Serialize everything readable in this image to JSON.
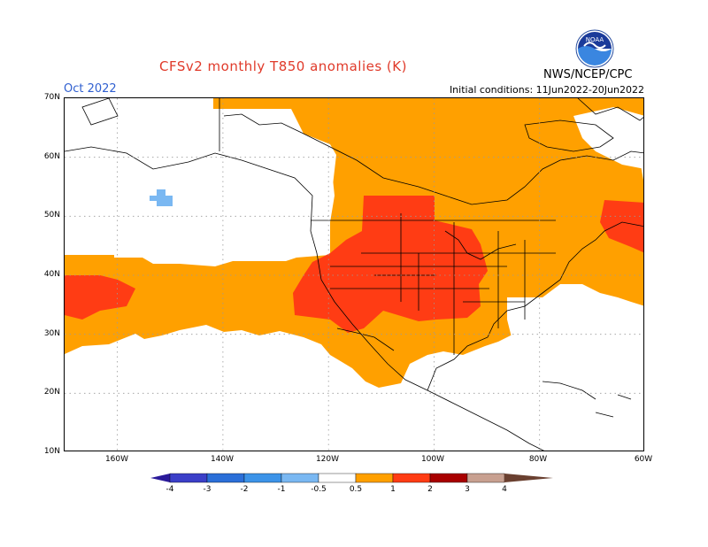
{
  "title": "CFSv2 monthly T850 anomalies (K)",
  "month": "Oct 2022",
  "initial_conditions": "Initial conditions: 11Jun2022-20Jun2022",
  "agency": "NWS/NCEP/CPC",
  "logo_text": "NOAA",
  "map": {
    "lon_range": [
      170,
      280
    ],
    "lat_range": [
      10,
      70
    ],
    "lat_labels": [
      "70N",
      "60N",
      "50N",
      "40N",
      "30N",
      "20N",
      "10N"
    ],
    "lon_labels": [
      "160W",
      "140W",
      "120W",
      "100W",
      "80W",
      "60W"
    ],
    "grid": true
  },
  "colorbar": {
    "labels": [
      "-4",
      "-3",
      "-2",
      "-1",
      "-0.5",
      "0.5",
      "1",
      "2",
      "3",
      "4"
    ],
    "colors": [
      "#2a1a9a",
      "#3b3fc8",
      "#2b6fd8",
      "#3c93e8",
      "#7ab8f2",
      "#ffffff",
      "#ffa000",
      "#ff3c14",
      "#a80000",
      "#c8a090",
      "#6a4030"
    ]
  }
}
